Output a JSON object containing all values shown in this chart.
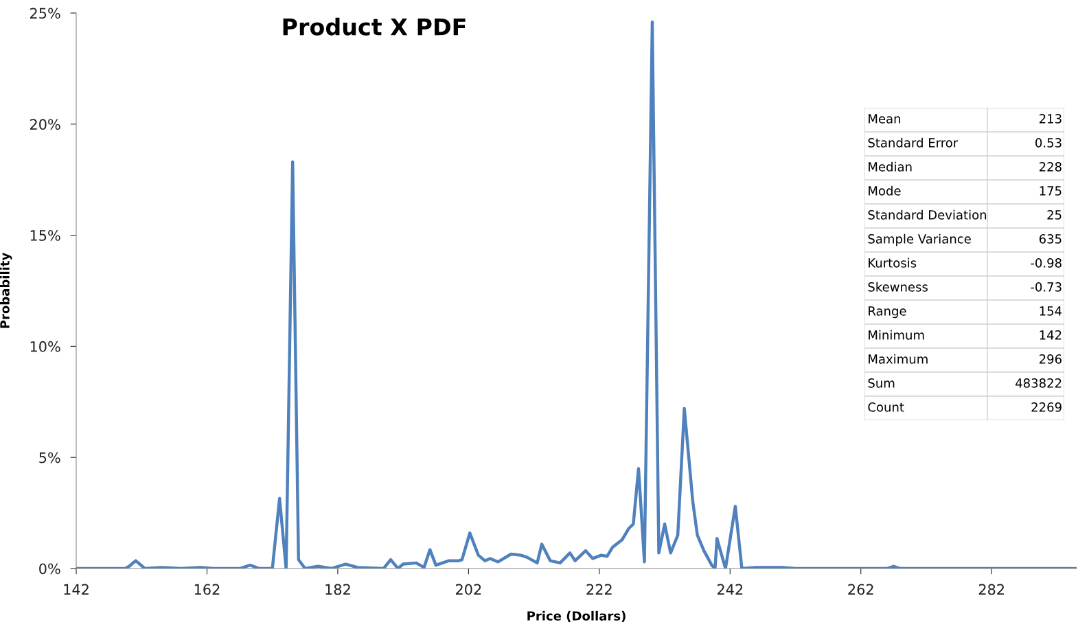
{
  "chart_data": {
    "type": "line",
    "title": "Product X PDF",
    "xlabel": "Price (Dollars)",
    "ylabel": "Probability",
    "xlim": [
      142,
      295
    ],
    "xticks": [
      142,
      162,
      182,
      202,
      222,
      242,
      262,
      282
    ],
    "ylim": [
      0,
      25
    ],
    "yticks": [
      {
        "value": 0,
        "label": "0%"
      },
      {
        "value": 5,
        "label": "5%"
      },
      {
        "value": 10,
        "label": "10%"
      },
      {
        "value": 15,
        "label": "15%"
      },
      {
        "value": 20,
        "label": "20%"
      },
      {
        "value": 25,
        "label": "25%"
      }
    ],
    "grid": false,
    "legend": false,
    "marker": "none",
    "line_style": "solid",
    "series": [
      {
        "color": "#4f81bd",
        "x": [
          142,
          149.5,
          150.1,
          151.1,
          152.5,
          155,
          158,
          161,
          163,
          167,
          168.6,
          170,
          172,
          173.1,
          174.1,
          175.1,
          176.0,
          177,
          179,
          181,
          183.2,
          185,
          189,
          190.1,
          191.2,
          192,
          194,
          195.2,
          196.1,
          197,
          199,
          200.5,
          201,
          202.2,
          203.5,
          204.5,
          205.3,
          206.5,
          208.5,
          210,
          211,
          212.5,
          213.2,
          214.5,
          216,
          217.5,
          218.3,
          219.9,
          221,
          222.3,
          223.2,
          224,
          225.5,
          226.5,
          227.2,
          228.0,
          228.9,
          230.1,
          231.1,
          232.0,
          232.9,
          234,
          235.0,
          236.3,
          237,
          238,
          239.2,
          239.7,
          240.0,
          241.3,
          242.8,
          243.8,
          246,
          250,
          252,
          266,
          267,
          268,
          295
        ],
        "values": [
          0,
          0,
          0.1,
          0.35,
          0,
          0.05,
          0,
          0.05,
          0,
          0,
          0.15,
          0,
          0,
          3.15,
          0,
          18.3,
          0.4,
          0,
          0.1,
          0,
          0.2,
          0.05,
          0,
          0.4,
          0,
          0.2,
          0.25,
          0.05,
          0.85,
          0.15,
          0.35,
          0.35,
          0.4,
          1.6,
          0.6,
          0.35,
          0.45,
          0.3,
          0.65,
          0.6,
          0.5,
          0.25,
          1.1,
          0.35,
          0.25,
          0.7,
          0.35,
          0.8,
          0.45,
          0.6,
          0.55,
          0.95,
          1.3,
          1.8,
          2.0,
          4.5,
          0.3,
          24.6,
          0.7,
          2.0,
          0.7,
          1.5,
          7.2,
          3.0,
          1.5,
          0.8,
          0.15,
          0,
          1.35,
          0,
          2.8,
          0,
          0.05,
          0.05,
          0,
          0,
          0.1,
          0,
          0
        ]
      }
    ],
    "annotations": [
      "Mean",
      "213",
      "Standard Error",
      "0.53",
      "Median",
      "228",
      "Mode",
      "175",
      "Standard Deviation",
      "25",
      "Sample Variance",
      "635",
      "Kurtosis",
      "-0.98",
      "Skewness",
      "-0.73",
      "Range",
      "154",
      "Minimum",
      "142",
      "Maximum",
      "296",
      "Sum",
      "483822",
      "Count",
      "2269"
    ]
  }
}
